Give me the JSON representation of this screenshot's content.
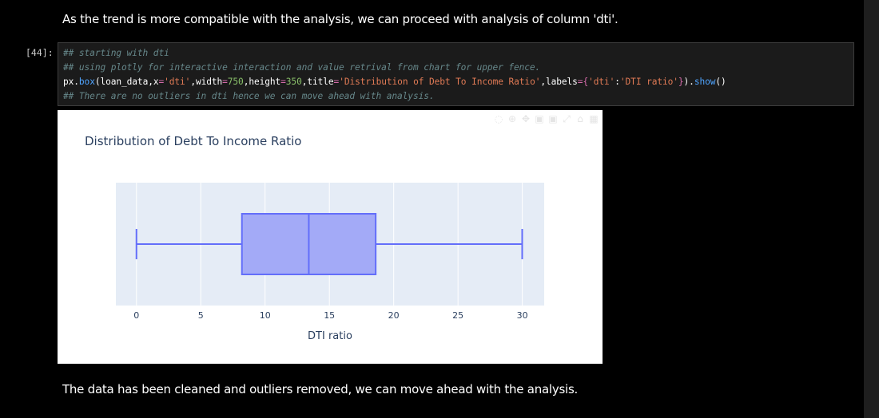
{
  "markdown": {
    "top": "As the trend is more compatible with the analysis, we can proceed with analysis of column 'dti'.",
    "bottom": "The data has been cleaned and outliers removed, we can move ahead with the analysis."
  },
  "cell": {
    "prompt": "[44]:",
    "line1": "## starting with dti",
    "line2": "## using plotly for interactive interaction and value retrival from chart for upper fence.",
    "line3": {
      "t1": "px.",
      "t2": "box",
      "t3": "(loan_data,x",
      "t4": "=",
      "t5": "'dti'",
      "t6": ",width",
      "t7": "=",
      "t8": "750",
      "t9": ",height",
      "t10": "=",
      "t11": "350",
      "t12": ",title",
      "t13": "=",
      "t14": "'Distribution of Debt To Income Ratio'",
      "t15": ",labels",
      "t16": "=",
      "t17": "{",
      "t18": "'dti'",
      "t19": ":",
      "t20": "'DTI ratio'",
      "t21": "}",
      "t22": ").",
      "t23": "show",
      "t24": "()"
    },
    "line4": "## There are no outliers in dti hence we can move ahead with analysis."
  },
  "chart_data": {
    "type": "box",
    "title": "Distribution of Debt To Income Ratio",
    "xlabel": "DTI ratio",
    "ylabel": "",
    "orientation": "horizontal",
    "xlim": [
      -1.6,
      31.7
    ],
    "x_ticks": [
      0,
      5,
      10,
      15,
      20,
      25,
      30
    ],
    "box": {
      "min": 0,
      "q1": 8.2,
      "median": 13.4,
      "q3": 18.6,
      "max": 29.99
    },
    "grid": true,
    "colors": {
      "fill": "#a3aaf7",
      "stroke": "#636efa",
      "plot_bg": "#e5ecf6",
      "text": "#2a3f5f"
    }
  }
}
